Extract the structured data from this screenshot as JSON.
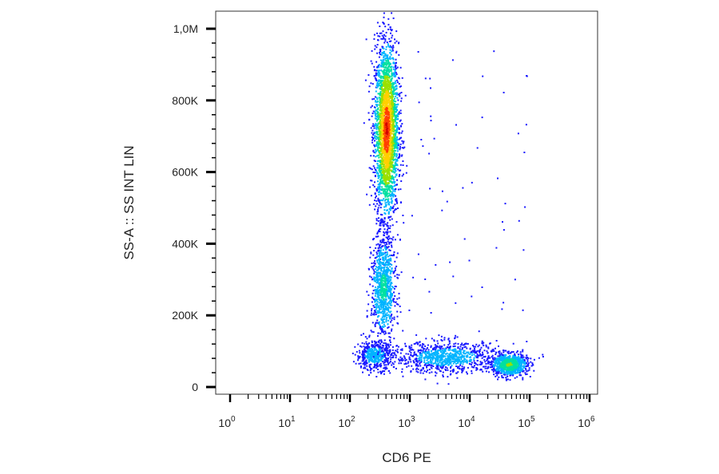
{
  "chart_data": {
    "type": "scatter",
    "title": "",
    "xlabel": "CD6 PE",
    "ylabel": "SS-A :: SS INT LIN",
    "x_scale": "log",
    "x_tick_labels": [
      {
        "base": "10",
        "exp": "0"
      },
      {
        "base": "10",
        "exp": "1"
      },
      {
        "base": "10",
        "exp": "2"
      },
      {
        "base": "10",
        "exp": "3"
      },
      {
        "base": "10",
        "exp": "4"
      },
      {
        "base": "10",
        "exp": "5"
      },
      {
        "base": "10",
        "exp": "6"
      }
    ],
    "y_ticks": [
      0,
      200000,
      400000,
      600000,
      800000,
      1000000
    ],
    "y_tick_labels": [
      "0",
      "200K",
      "400K",
      "600K",
      "800K",
      "1,0M"
    ],
    "ylim": [
      0,
      1050000
    ],
    "grid": false,
    "colormap": [
      "#1a1aff",
      "#00b4ff",
      "#00e0a0",
      "#9be000",
      "#ffd000",
      "#ff4000",
      "#d00000"
    ],
    "populations": [
      {
        "name": "",
        "x_log_center": 2.6,
        "x_log_sd": 0.1,
        "y_center": 720000,
        "y_sd": 120000,
        "count": 2800,
        "peak_color": "#d00000"
      },
      {
        "name": "",
        "x_log_center": 2.55,
        "x_log_sd": 0.1,
        "y_center": 280000,
        "y_sd": 70000,
        "count": 900,
        "peak_color": "#00e0a0"
      },
      {
        "name": "",
        "x_log_center": 2.4,
        "x_log_sd": 0.15,
        "y_center": 90000,
        "y_sd": 20000,
        "count": 500,
        "peak_color": "#00b4ff"
      },
      {
        "name": "",
        "x_log_center": 3.6,
        "x_log_sd": 0.45,
        "y_center": 85000,
        "y_sd": 22000,
        "count": 900,
        "peak_color": "#00b4ff"
      },
      {
        "name": "",
        "x_log_center": 4.65,
        "x_log_sd": 0.15,
        "y_center": 65000,
        "y_sd": 15000,
        "count": 900,
        "peak_color": "#9be000"
      }
    ]
  }
}
